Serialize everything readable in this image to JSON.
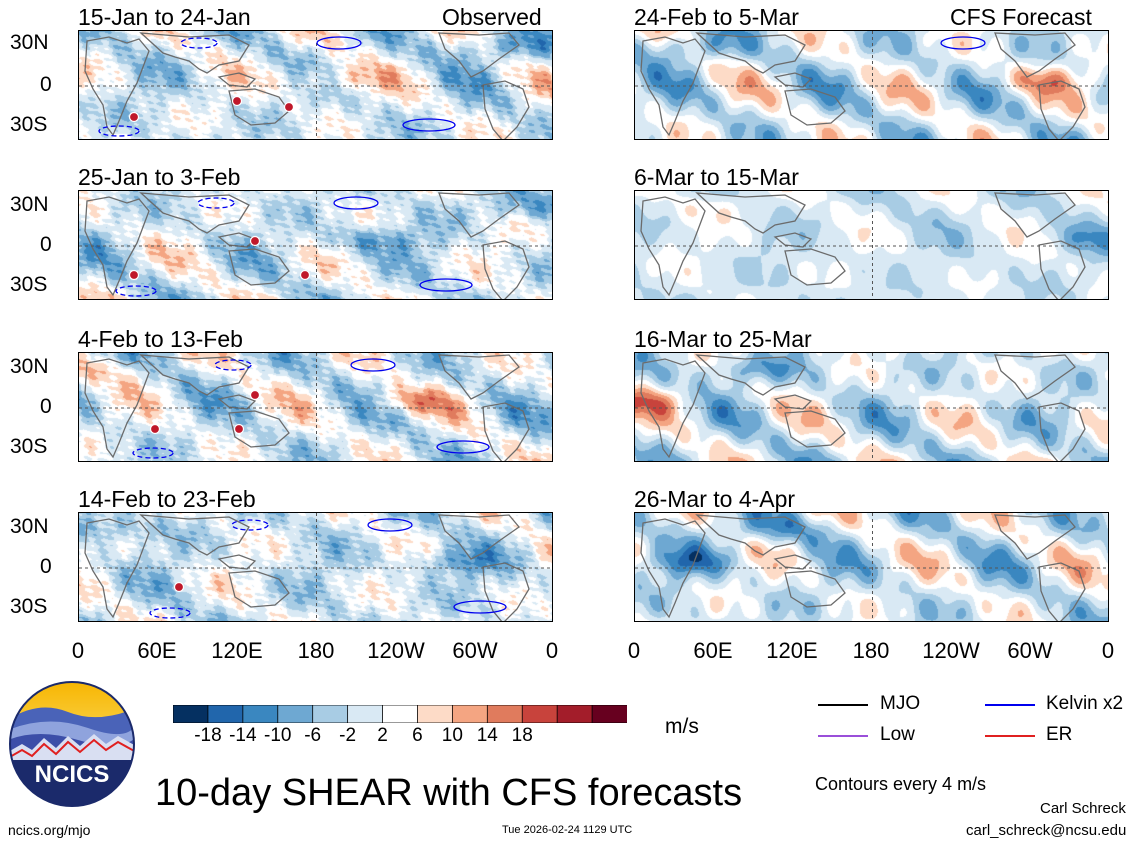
{
  "main_title": "10-day SHEAR with CFS forecasts",
  "units": "m/s",
  "contour_note": "Contours every 4 m/s",
  "author": "Carl Schreck",
  "email": "carl_schreck@ncsu.edu",
  "site": "ncics.org/mjo",
  "timestamp": "Tue 2026-02-24 1129 UTC",
  "logo_text": "NCICS",
  "colors": {
    "kelvin": "#0000ee",
    "low": "#9a4fd9",
    "er": "#e02020",
    "mjo": "#000000"
  },
  "observed_label": "Observed",
  "forecast_label": "CFS Forecast",
  "lat_labels": [
    "30N",
    "0",
    "30S"
  ],
  "lon_labels": [
    "0",
    "60E",
    "120E",
    "180",
    "120W",
    "60W",
    "0"
  ],
  "colorbar": {
    "ticks": [
      "-18",
      "-14",
      "-10",
      "-6",
      "-2",
      "2",
      "6",
      "10",
      "14",
      "18"
    ],
    "colors": [
      "#053061",
      "#2166ac",
      "#3a87c0",
      "#6ea8d2",
      "#a8cce4",
      "#d9e9f4",
      "#ffffff",
      "#fddbc7",
      "#f4a582",
      "#e07b5d",
      "#c8433c",
      "#a31d2a",
      "#67001f"
    ]
  },
  "legend": [
    {
      "label": "MJO",
      "color": "#000000"
    },
    {
      "label": "Kelvin x2",
      "color": "#0000ee"
    },
    {
      "label": "Low",
      "color": "#9a4fd9"
    },
    {
      "label": "ER",
      "color": "#e02020"
    }
  ],
  "panels": [
    {
      "title": "15-Jan to 24-Jan",
      "side": "Observed",
      "column": "left"
    },
    {
      "title": "25-Jan to 3-Feb",
      "column": "left"
    },
    {
      "title": "4-Feb to 13-Feb",
      "column": "left"
    },
    {
      "title": "14-Feb to 23-Feb",
      "column": "left"
    },
    {
      "title": "24-Feb to 5-Mar",
      "side": "CFS Forecast",
      "column": "right"
    },
    {
      "title": "6-Mar to 15-Mar",
      "column": "right"
    },
    {
      "title": "16-Mar to 25-Mar",
      "column": "right"
    },
    {
      "title": "26-Mar to 4-Apr",
      "column": "right"
    }
  ]
}
